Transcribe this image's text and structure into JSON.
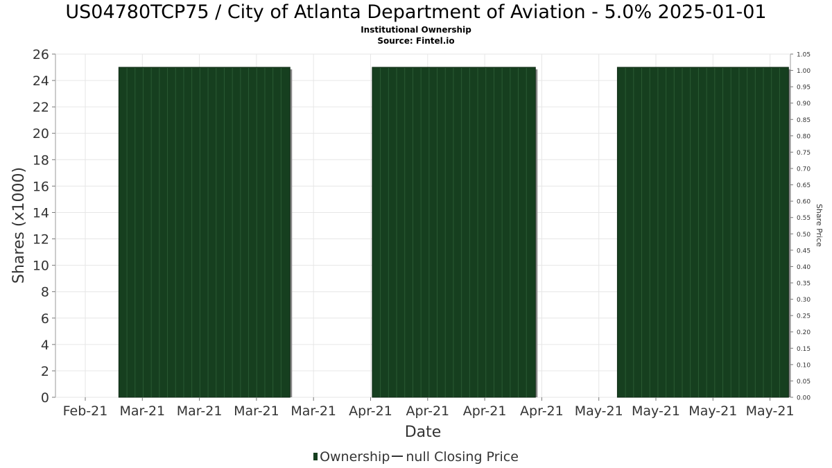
{
  "chart_data": {
    "type": "bar",
    "title": "US04780TCP75 / City of Atlanta Department of Aviation - 5.0% 2025-01-01",
    "subtitle": "Institutional Ownership",
    "source": "Source: Fintel.io",
    "xlabel": "Date",
    "ylabel": "Shares (x1000)",
    "ylabel_right": "Share Price",
    "x_ticks": [
      "Feb-21",
      "Mar-21",
      "Mar-21",
      "Mar-21",
      "Mar-21",
      "Apr-21",
      "Apr-21",
      "Apr-21",
      "Apr-21",
      "May-21",
      "May-21",
      "May-21",
      "May-21"
    ],
    "y_ticks": [
      0,
      2,
      4,
      6,
      8,
      10,
      12,
      14,
      16,
      18,
      20,
      22,
      24,
      26
    ],
    "ylim": [
      0,
      26
    ],
    "y2_ticks": [
      "0.00",
      "0.05",
      "0.10",
      "0.15",
      "0.20",
      "0.25",
      "0.30",
      "0.35",
      "0.40",
      "0.45",
      "0.50",
      "0.55",
      "0.60",
      "0.65",
      "0.70",
      "0.75",
      "0.80",
      "0.85",
      "0.90",
      "0.95",
      "1.00",
      "1.05"
    ],
    "y2lim": [
      0,
      1.05
    ],
    "grid": true,
    "legend_position": "bottom",
    "series": [
      {
        "name": "Ownership",
        "color": "#163f1f",
        "blocks": [
          {
            "start_tick": 0.5876,
            "end_tick": 3.5876,
            "value": 25
          },
          {
            "start_tick": 5.0296,
            "end_tick": 7.8889,
            "value": 25
          },
          {
            "start_tick": 9.3247,
            "end_tick": 12.3247,
            "value": 25
          }
        ]
      }
    ],
    "legend": [
      {
        "label": "Ownership",
        "marker": "bar"
      },
      {
        "label": "null Closing Price",
        "marker": "line"
      }
    ]
  }
}
